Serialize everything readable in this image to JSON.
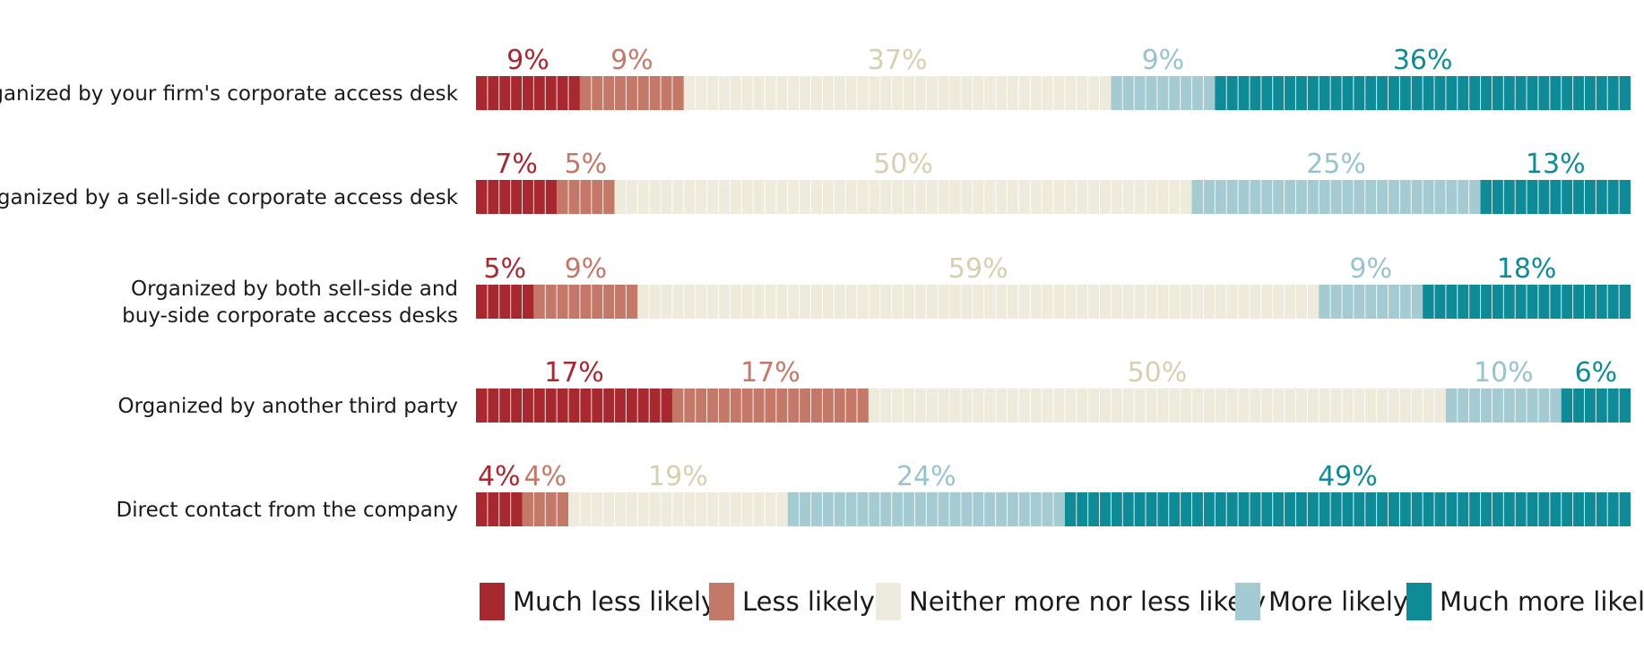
{
  "chart_data": {
    "type": "bar",
    "orientation": "horizontal",
    "stacked": true,
    "title": "",
    "xlabel": "",
    "ylabel": "",
    "categories": [
      "Organized by your firm's corporate access desk",
      "Organized by a sell-side corporate access desk",
      "Organized by both sell-side and\nbuy-side corporate access desks",
      "Organized by another third party",
      "Direct contact from the company"
    ],
    "series": [
      {
        "name": "Much less likely",
        "color": "#a7282f",
        "label_color": "#a7282f",
        "values": [
          9,
          7,
          5,
          17,
          4
        ],
        "labels": [
          "9%",
          "7%",
          "5%",
          "17%",
          "4%"
        ]
      },
      {
        "name": "Less likely",
        "color": "#c47968",
        "label_color": "#c47968",
        "values": [
          9,
          5,
          9,
          17,
          4
        ],
        "labels": [
          "9%",
          "5%",
          "9%",
          "17%",
          "4%"
        ]
      },
      {
        "name": "Neither more nor less likely",
        "color": "#eeebdc",
        "label_color": "#d8cfae",
        "values": [
          37,
          50,
          59,
          50,
          19
        ],
        "labels": [
          "37%",
          "50%",
          "59%",
          "50%",
          "19%"
        ]
      },
      {
        "name": "More likely",
        "color": "#a3cbd1",
        "label_color": "#97c3ce",
        "values": [
          9,
          25,
          9,
          10,
          24
        ],
        "labels": [
          "9%",
          "25%",
          "9%",
          "10%",
          "24%"
        ]
      },
      {
        "name": "Much more likely",
        "color": "#0f8b98",
        "label_color": "#0f8b98",
        "values": [
          36,
          13,
          18,
          6,
          49
        ],
        "labels": [
          "36%",
          "13%",
          "18%",
          "6%",
          "49%"
        ]
      }
    ],
    "legend_position": "bottom",
    "grid": false
  }
}
